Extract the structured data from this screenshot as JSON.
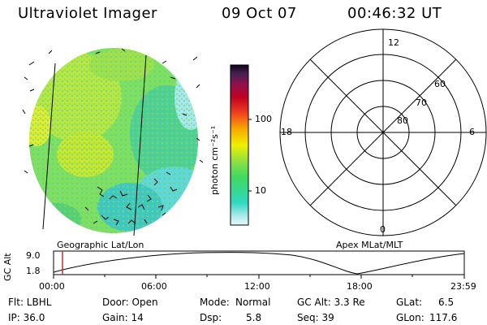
{
  "header": {
    "instrument": "Ultraviolet Imager",
    "date": "09 Oct 07",
    "time": "00:46:32 UT"
  },
  "colorbar": {
    "unit_label": "photon cm⁻²s⁻¹",
    "tick_labels": [
      "100",
      "10"
    ]
  },
  "polar_plot": {
    "mlt_labels": {
      "top": "12",
      "right": "6",
      "bottom": "0",
      "left": "18"
    },
    "lat_labels": [
      "60",
      "70",
      "80"
    ]
  },
  "panel_labels": {
    "left": "Geographic Lat/Lon",
    "right": "Apex MLat/MLT"
  },
  "orbit": {
    "axis_label": "GC Alt",
    "y_ticks": [
      "9.0",
      "1.8"
    ],
    "x_ticks": [
      "00:00",
      "06:00",
      "12:00",
      "18:00",
      "23:59"
    ]
  },
  "info": {
    "row1": {
      "flt": "Flt: LBHL",
      "door": "Door: Open",
      "mode_label": "Mode:",
      "mode_value": "Normal",
      "gcalt": "GC Alt: 3.3 Re",
      "glat_label": "GLat:",
      "glat_value": "6.5"
    },
    "row2": {
      "ip": "IP: 36.0",
      "gain": "Gain: 14",
      "dsp_label": "Dsp:",
      "dsp_value": "5.8",
      "seq": "Seq: 39",
      "glon_label": "GLon:",
      "glon_value": "117.6"
    }
  }
}
